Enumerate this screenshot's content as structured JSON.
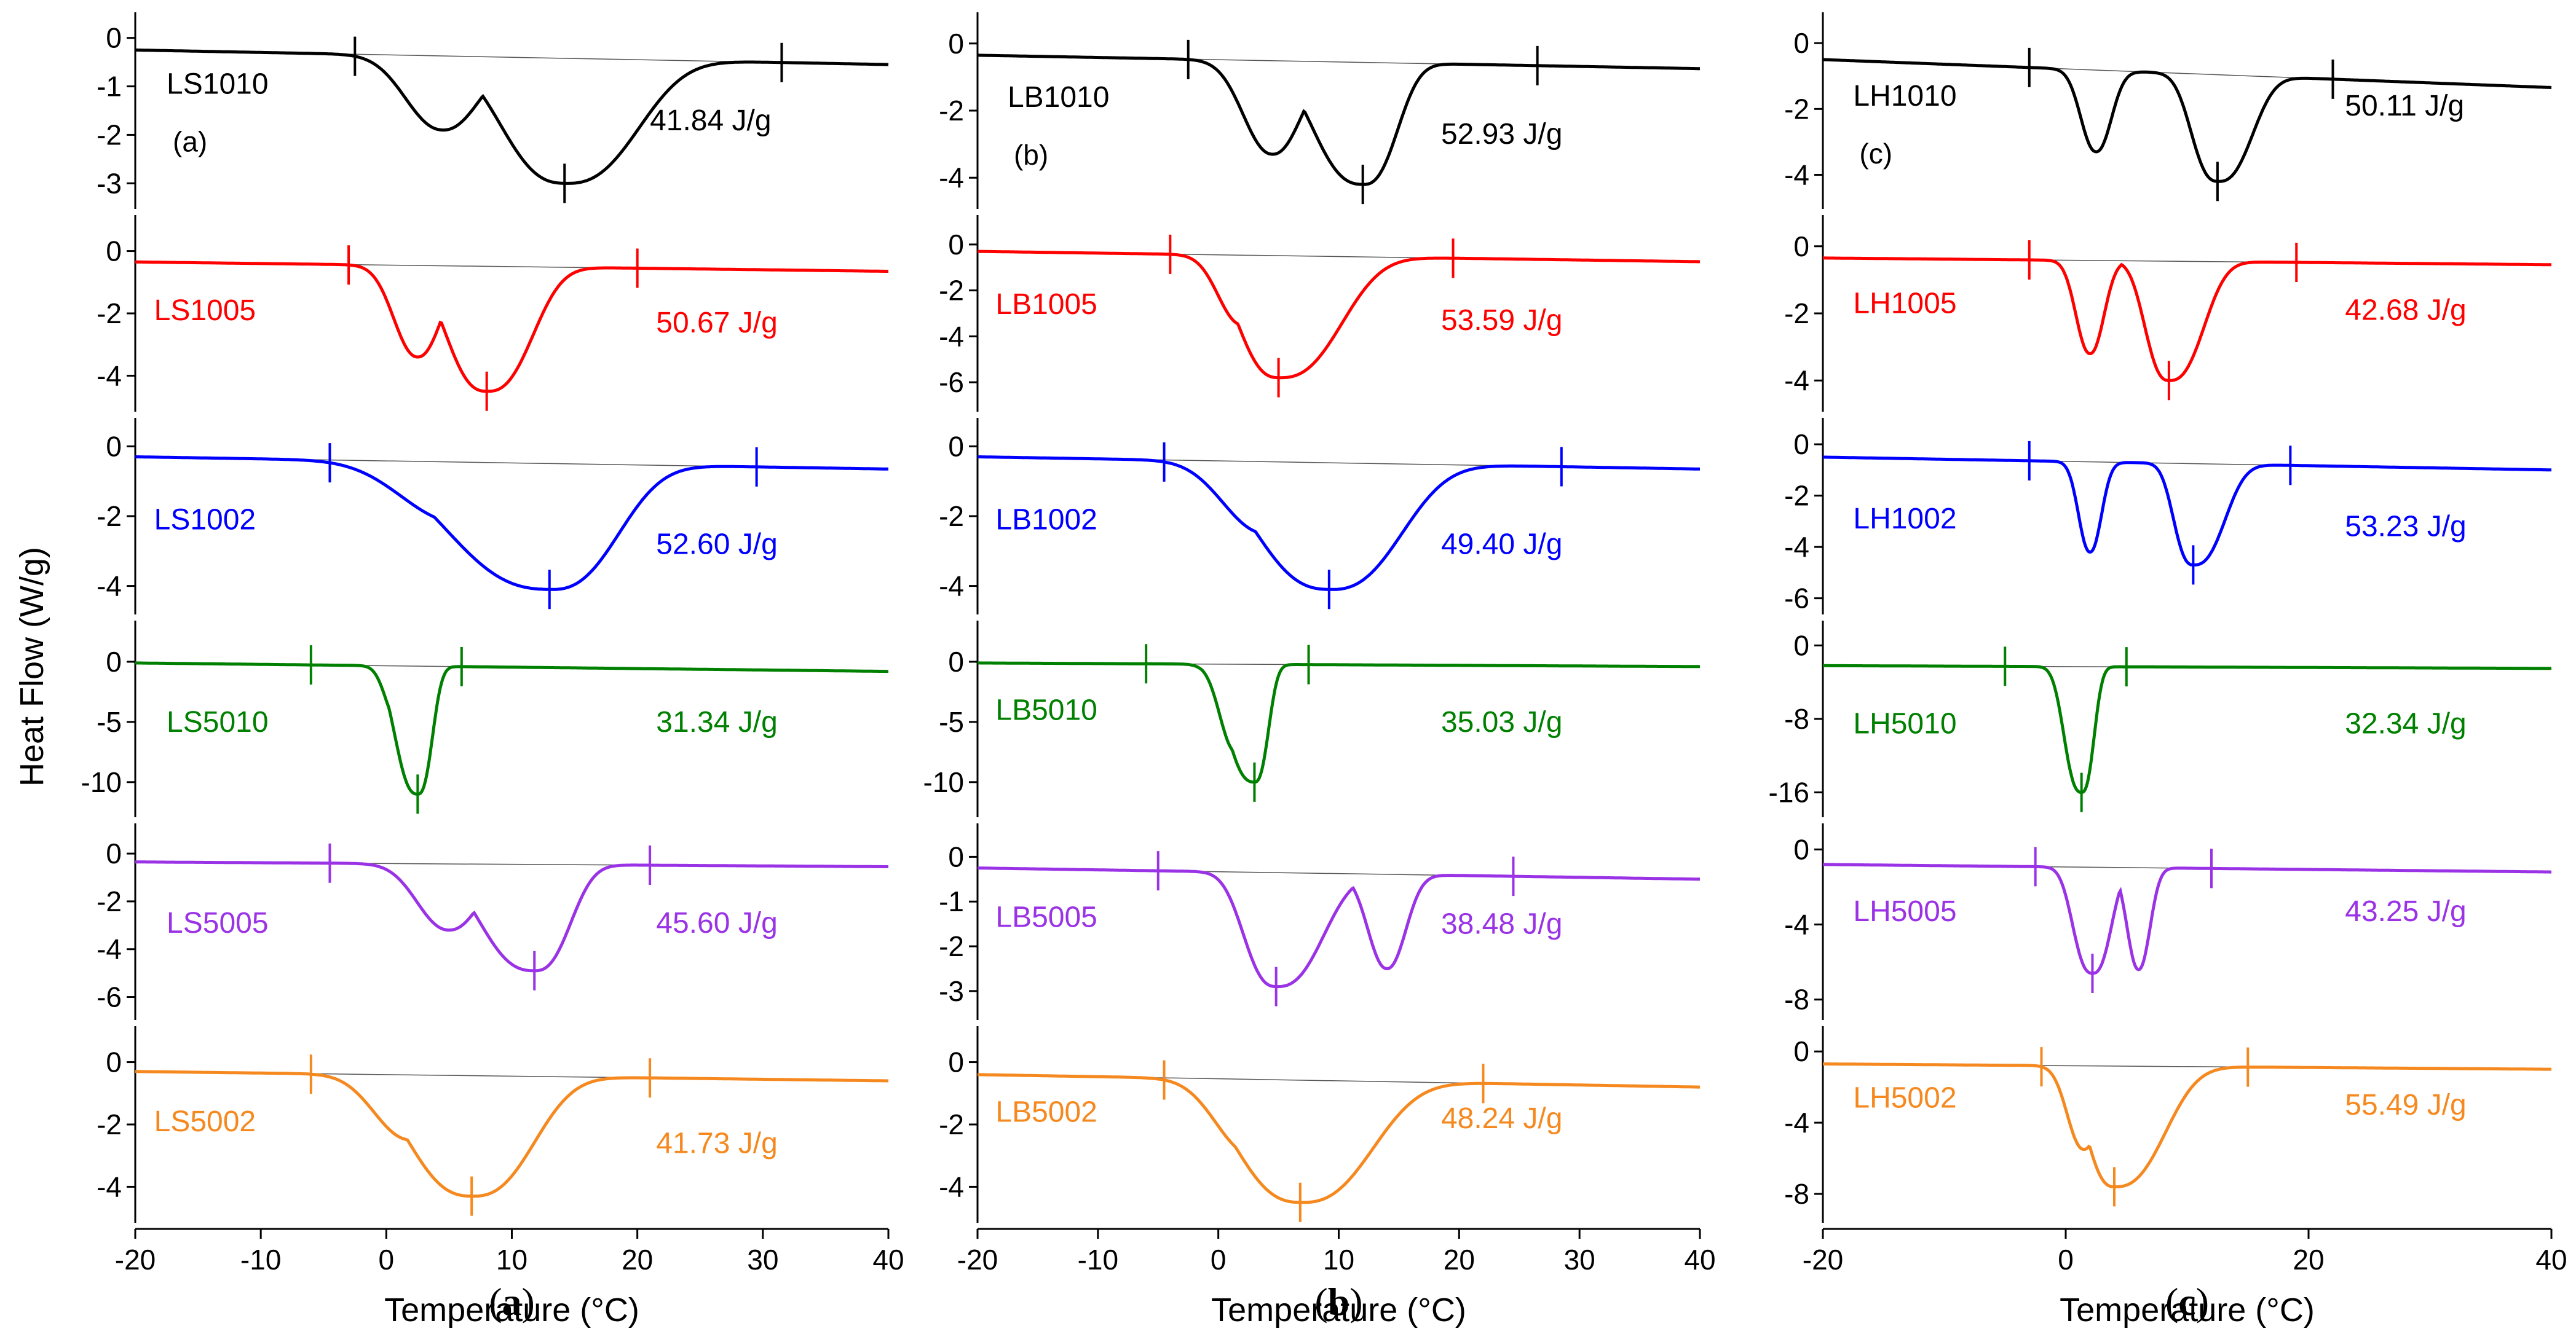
{
  "chart_data": {
    "type": "line",
    "figure": "DSC thermograms (heat flow vs temperature) of 18 samples",
    "shared": {
      "xlabel": "Temperature (°C)",
      "ylabel": "Heat Flow (W/g)",
      "xlim": [
        -20,
        40
      ]
    },
    "columns": [
      {
        "id": "a",
        "caption": "a",
        "xticks": [
          -20,
          -10,
          0,
          10,
          20,
          30,
          40
        ],
        "panels": [
          {
            "name": "LS1010",
            "color": "#000000",
            "enthalpy": "41.84 J/g",
            "sub_label": "(a)",
            "yticks": [
              0,
              -1,
              -2,
              -3
            ],
            "ylim": [
              -3.3,
              0.3
            ],
            "baseline_start": -0.25,
            "baseline_end": -0.55,
            "onset": -2.5,
            "endset": 31.5,
            "peak": 14.2,
            "peak_value": -3.0,
            "shoulder_x": 4.5,
            "shoulder_value": -1.9,
            "left_width": 2.8,
            "right_width": 4.5,
            "label_x": -17.5,
            "label_y": -0.95,
            "enthalpy_x": 21,
            "enthalpy_y": -1.7
          },
          {
            "name": "LS1005",
            "color": "#ff0000",
            "enthalpy": "50.67 J/g",
            "yticks": [
              0,
              -2,
              -4
            ],
            "ylim": [
              -4.8,
              0.8
            ],
            "baseline_start": -0.35,
            "baseline_end": -0.65,
            "onset": -3.0,
            "endset": 20.0,
            "peak": 8.0,
            "peak_value": -4.5,
            "shoulder_x": 2.5,
            "shoulder_value": -3.4,
            "left_width": 1.8,
            "right_width": 2.8,
            "label_x": -18.5,
            "label_y": -1.9,
            "enthalpy_x": 21.5,
            "enthalpy_y": -2.3
          },
          {
            "name": "LS1002",
            "color": "#0000ff",
            "enthalpy": "52.60 J/g",
            "yticks": [
              0,
              -2,
              -4
            ],
            "ylim": [
              -4.5,
              0.5
            ],
            "baseline_start": -0.3,
            "baseline_end": -0.65,
            "onset": -4.5,
            "endset": 29.5,
            "peak": 13.0,
            "peak_value": -4.1,
            "shoulder_x": 6,
            "shoulder_value": -2.2,
            "left_width": 4.5,
            "right_width": 4.2,
            "label_x": -18.5,
            "label_y": -2.1,
            "enthalpy_x": 21.5,
            "enthalpy_y": -2.8
          },
          {
            "name": "LS5010",
            "color": "#008000",
            "enthalpy": "31.34 J/g",
            "yticks": [
              0,
              -5,
              -10
            ],
            "ylim": [
              -12,
              2.5
            ],
            "baseline_start": -0.1,
            "baseline_end": -0.8,
            "onset": -6.0,
            "endset": 6.0,
            "peak": 2.5,
            "peak_value": -11.0,
            "shoulder_x": 1.0,
            "shoulder_value": -5.0,
            "left_width": 1.0,
            "right_width": 0.9,
            "label_x": -17.5,
            "label_y": -5.0,
            "enthalpy_x": 21.5,
            "enthalpy_y": -5.0
          },
          {
            "name": "LS5005",
            "color": "#9a32e6",
            "enthalpy": "45.60 J/g",
            "yticks": [
              0,
              -2,
              -4,
              -6
            ],
            "ylim": [
              -6.5,
              0.8
            ],
            "baseline_start": -0.35,
            "baseline_end": -0.55,
            "onset": -4.5,
            "endset": 21.0,
            "peak": 11.8,
            "peak_value": -4.9,
            "shoulder_x": 5,
            "shoulder_value": -3.2,
            "left_width": 2.4,
            "right_width": 2.2,
            "label_x": -17.5,
            "label_y": -2.9,
            "enthalpy_x": 21.5,
            "enthalpy_y": -2.9
          },
          {
            "name": "LS5002",
            "color": "#f5891f",
            "enthalpy": "41.73 J/g",
            "yticks": [
              0,
              -2,
              -4
            ],
            "ylim": [
              -4.8,
              0.8
            ],
            "baseline_start": -0.3,
            "baseline_end": -0.6,
            "onset": -6.0,
            "endset": 21.0,
            "peak": 6.8,
            "peak_value": -4.3,
            "shoulder_x": 2,
            "shoulder_value": -2.5,
            "left_width": 2.8,
            "right_width": 3.8,
            "label_x": -18.5,
            "label_y": -1.9,
            "enthalpy_x": 21.5,
            "enthalpy_y": -2.6
          }
        ]
      },
      {
        "id": "b",
        "caption": "b",
        "xticks": [
          -20,
          -10,
          0,
          10,
          20,
          30,
          40
        ],
        "panels": [
          {
            "name": "LB1010",
            "color": "#000000",
            "enthalpy": "52.93 J/g",
            "sub_label": "(b)",
            "yticks": [
              0,
              -2,
              -4
            ],
            "ylim": [
              -4.6,
              0.6
            ],
            "baseline_start": -0.35,
            "baseline_end": -0.75,
            "onset": -2.5,
            "endset": 26.5,
            "peak": 12.0,
            "peak_value": -4.2,
            "shoulder_x": 4.5,
            "shoulder_value": -3.3,
            "left_width": 2.3,
            "right_width": 2.2,
            "label_x": -17.5,
            "label_y": -1.6,
            "enthalpy_x": 18.5,
            "enthalpy_y": -2.7
          },
          {
            "name": "LB1005",
            "color": "#ff0000",
            "enthalpy": "53.59 J/g",
            "yticks": [
              0,
              -2,
              -4,
              -6
            ],
            "ylim": [
              -6.8,
              0.8
            ],
            "baseline_start": -0.3,
            "baseline_end": -0.75,
            "onset": -4.0,
            "endset": 19.5,
            "peak": 5.0,
            "peak_value": -5.8,
            "shoulder_x": 2,
            "shoulder_value": -3.5,
            "left_width": 1.9,
            "right_width": 4.0,
            "label_x": -18.5,
            "label_y": -2.6,
            "enthalpy_x": 18.5,
            "enthalpy_y": -3.3
          },
          {
            "name": "LB1002",
            "color": "#0000ff",
            "enthalpy": "49.40 J/g",
            "yticks": [
              0,
              -2,
              -4
            ],
            "ylim": [
              -4.5,
              0.5
            ],
            "baseline_start": -0.3,
            "baseline_end": -0.65,
            "onset": -4.5,
            "endset": 28.5,
            "peak": 9.2,
            "peak_value": -4.1,
            "shoulder_x": 4,
            "shoulder_value": -2.5,
            "left_width": 3.4,
            "right_width": 4.6,
            "label_x": -18.5,
            "label_y": -2.1,
            "enthalpy_x": 18.5,
            "enthalpy_y": -2.8
          },
          {
            "name": "LB5010",
            "color": "#008000",
            "enthalpy": "35.03 J/g",
            "yticks": [
              0,
              -5,
              -10
            ],
            "ylim": [
              -12,
              2.5
            ],
            "baseline_start": -0.1,
            "baseline_end": -0.4,
            "onset": -6.0,
            "endset": 7.5,
            "peak": 3.0,
            "peak_value": -10.0,
            "shoulder_x": 1.5,
            "shoulder_value": -7.5,
            "left_width": 1.3,
            "right_width": 0.9,
            "label_x": -18.5,
            "label_y": -4.0,
            "enthalpy_x": 18.5,
            "enthalpy_y": -5.0
          },
          {
            "name": "LB5005",
            "color": "#9a32e6",
            "enthalpy": "38.48 J/g",
            "yticks": [
              0,
              -1,
              -2,
              -3
            ],
            "ylim": [
              -3.4,
              0.5
            ],
            "baseline_start": -0.25,
            "baseline_end": -0.5,
            "onset": -5.0,
            "endset": 24.5,
            "peak": 4.8,
            "peak_value": -2.9,
            "shoulder_x": 14,
            "shoulder_value": -2.5,
            "left_width": 1.5,
            "right_width": 3.0,
            "label_x": -18.5,
            "label_y": -1.35,
            "enthalpy_x": 18.5,
            "enthalpy_y": -1.5
          },
          {
            "name": "LB5002",
            "color": "#f5891f",
            "enthalpy": "48.24 J/g",
            "yticks": [
              0,
              -2,
              -4
            ],
            "ylim": [
              -4.8,
              0.8
            ],
            "baseline_start": -0.4,
            "baseline_end": -0.8,
            "onset": -4.5,
            "endset": 22.0,
            "peak": 6.8,
            "peak_value": -4.5,
            "shoulder_x": 3,
            "shoulder_value": -3.0,
            "left_width": 3.0,
            "right_width": 4.6,
            "label_x": -18.5,
            "label_y": -1.6,
            "enthalpy_x": 18.5,
            "enthalpy_y": -1.8
          }
        ]
      },
      {
        "id": "c",
        "caption": "c",
        "xticks": [
          -20,
          0,
          20,
          40
        ],
        "panels": [
          {
            "name": "LH1010",
            "color": "#000000",
            "enthalpy": "50.11 J/g",
            "sub_label": "(c)",
            "yticks": [
              0,
              -2,
              -4
            ],
            "ylim": [
              -4.7,
              0.6
            ],
            "baseline_start": -0.5,
            "baseline_end": -1.35,
            "onset": -3.0,
            "endset": 22.0,
            "peak": 12.5,
            "peak_value": -4.2,
            "shoulder_x": 2.5,
            "shoulder_value": -3.3,
            "left_width": 1.2,
            "right_width": 2.2,
            "label_x": -17.5,
            "label_y": -1.6,
            "enthalpy_x": 23.0,
            "enthalpy_y": -1.9
          },
          {
            "name": "LH1005",
            "color": "#ff0000",
            "enthalpy": "42.68 J/g",
            "yticks": [
              0,
              -2,
              -4
            ],
            "ylim": [
              -4.6,
              0.6
            ],
            "baseline_start": -0.35,
            "baseline_end": -0.55,
            "onset": -3.0,
            "endset": 19.0,
            "peak": 8.5,
            "peak_value": -4.0,
            "shoulder_x": 2,
            "shoulder_value": -3.2,
            "left_width": 1.1,
            "right_width": 2.2,
            "label_x": -17.5,
            "label_y": -1.7,
            "enthalpy_x": 23.0,
            "enthalpy_y": -1.9
          },
          {
            "name": "LH1002",
            "color": "#0000ff",
            "enthalpy": "53.23 J/g",
            "yticks": [
              0,
              -2,
              -4,
              -6
            ],
            "ylim": [
              -6.2,
              0.6
            ],
            "baseline_start": -0.5,
            "baseline_end": -1.0,
            "onset": -3.0,
            "endset": 18.5,
            "peak": 10.5,
            "peak_value": -4.7,
            "shoulder_x": 2,
            "shoulder_value": -4.2,
            "left_width": 0.9,
            "right_width": 2.0,
            "label_x": -17.5,
            "label_y": -2.9,
            "enthalpy_x": 23.0,
            "enthalpy_y": -3.2
          },
          {
            "name": "LH5010",
            "color": "#008000",
            "enthalpy": "32.34 J/g",
            "yticks": [
              0,
              -8,
              -16
            ],
            "ylim": [
              -17.5,
              1.5
            ],
            "baseline_start": -2.2,
            "baseline_end": -2.5,
            "onset": -5.0,
            "endset": 5.0,
            "peak": 1.3,
            "peak_value": -16.0,
            "shoulder_x": 0.5,
            "shoulder_value": -8.0,
            "left_width": 0.8,
            "right_width": 0.8,
            "label_x": -17.5,
            "label_y": -8.5,
            "enthalpy_x": 23.0,
            "enthalpy_y": -8.5
          },
          {
            "name": "LH5005",
            "color": "#9a32e6",
            "enthalpy": "43.25 J/g",
            "yticks": [
              0,
              -4,
              -8
            ],
            "ylim": [
              -8.5,
              0.8
            ],
            "baseline_start": -0.8,
            "baseline_end": -1.2,
            "onset": -2.5,
            "endset": 12.0,
            "peak": 2.2,
            "peak_value": -6.6,
            "shoulder_x": 6.0,
            "shoulder_value": -6.4,
            "left_width": 0.9,
            "right_width": 1.2,
            "label_x": -17.5,
            "label_y": -3.3,
            "enthalpy_x": 23.0,
            "enthalpy_y": -3.3
          },
          {
            "name": "LH5002",
            "color": "#f5891f",
            "enthalpy": "55.49 J/g",
            "yticks": [
              0,
              -4,
              -8
            ],
            "ylim": [
              -9,
              0.8
            ],
            "baseline_start": -0.7,
            "baseline_end": -1.0,
            "onset": -2.0,
            "endset": 15.0,
            "peak": 4.0,
            "peak_value": -7.6,
            "shoulder_x": 1.5,
            "shoulder_value": -5.5,
            "left_width": 1.3,
            "right_width": 3.2,
            "label_x": -17.5,
            "label_y": -2.6,
            "enthalpy_x": 23.0,
            "enthalpy_y": -3.0
          }
        ]
      }
    ]
  }
}
